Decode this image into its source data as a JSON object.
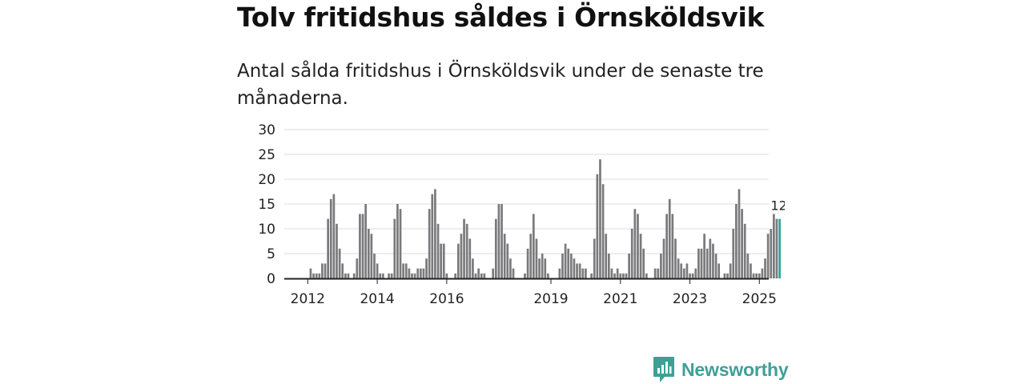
{
  "header": {
    "title": "Tolv fritidshus såldes i Örnsköldsvik",
    "subtitle": "Antal sålda fritidshus i Örnsköldsvik under de senaste tre månaderna."
  },
  "brand": {
    "name": "Newsworthy",
    "color": "#3f9f97"
  },
  "colors": {
    "bar": "#7a7a7c",
    "highlight": "#2aa79b",
    "grid": "#dddddd",
    "axis": "#222222"
  },
  "chart_data": {
    "type": "bar",
    "title": "Tolv fritidshus såldes i Örnsköldsvik",
    "xlabel": "",
    "ylabel": "",
    "ylim": [
      0,
      30
    ],
    "yticks": [
      0,
      5,
      10,
      15,
      20,
      25,
      30
    ],
    "grid": true,
    "legend": "none",
    "first_month": "2012-01",
    "x_tick_labels": [
      {
        "label": "2012",
        "index": 0
      },
      {
        "label": "2014",
        "index": 24
      },
      {
        "label": "2016",
        "index": 48
      },
      {
        "label": "2019",
        "index": 84
      },
      {
        "label": "2021",
        "index": 108
      },
      {
        "label": "2023",
        "index": 132
      },
      {
        "label": "2025",
        "index": 156
      }
    ],
    "values": [
      0,
      2,
      1,
      1,
      1,
      3,
      3,
      12,
      16,
      17,
      11,
      6,
      3,
      1,
      1,
      0,
      1,
      4,
      13,
      13,
      15,
      10,
      9,
      5,
      3,
      1,
      1,
      0,
      1,
      1,
      12,
      15,
      14,
      3,
      3,
      2,
      1,
      1,
      2,
      2,
      2,
      4,
      14,
      17,
      18,
      11,
      7,
      7,
      1,
      0,
      0,
      1,
      7,
      9,
      12,
      11,
      8,
      4,
      1,
      2,
      1,
      1,
      0,
      0,
      2,
      12,
      15,
      15,
      9,
      7,
      4,
      2,
      0,
      0,
      0,
      1,
      6,
      9,
      13,
      8,
      4,
      5,
      4,
      1,
      0,
      0,
      0,
      2,
      5,
      7,
      6,
      5,
      4,
      3,
      3,
      2,
      2,
      0,
      1,
      8,
      21,
      24,
      19,
      9,
      5,
      2,
      1,
      2,
      1,
      1,
      1,
      5,
      10,
      14,
      13,
      9,
      6,
      1,
      0,
      0,
      2,
      2,
      5,
      8,
      13,
      16,
      13,
      8,
      4,
      3,
      2,
      3,
      1,
      1,
      2,
      6,
      6,
      9,
      6,
      8,
      7,
      5,
      3,
      0,
      1,
      1,
      3,
      10,
      15,
      18,
      14,
      11,
      5,
      3,
      1,
      1,
      1,
      2,
      4,
      9,
      10,
      13,
      12,
      12
    ],
    "highlight": {
      "last_n": 1,
      "label": "12"
    }
  }
}
